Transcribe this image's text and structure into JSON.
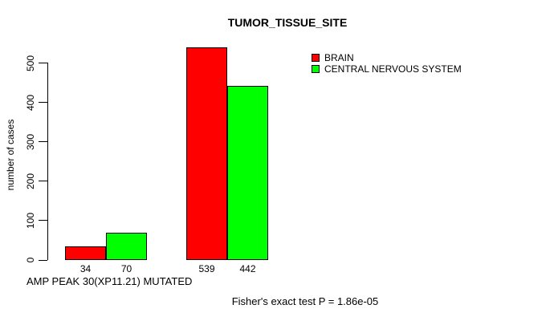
{
  "page": {
    "background_color": "#ffffff",
    "text_color": "#000000"
  },
  "chart_data": {
    "type": "bar",
    "title": "TUMOR_TISSUE_SITE",
    "ylabel": "number of cases",
    "xlabel": "",
    "yticks": [
      0,
      100,
      200,
      300,
      400,
      500
    ],
    "ylim": [
      0,
      560
    ],
    "grid": false,
    "legend_position": "top-right-inside",
    "bar_border_color": "#000000",
    "series": [
      {
        "name": "BRAIN",
        "color": "#ff0000",
        "values": [
          34,
          539
        ]
      },
      {
        "name": "CENTRAL NERVOUS SYSTEM",
        "color": "#00ff00",
        "values": [
          70,
          442
        ]
      }
    ],
    "bar_value_labels": [
      "34",
      "70",
      "539",
      "442"
    ]
  },
  "annotations": {
    "x_axis_note": "AMP PEAK 30(XP11.21) MUTATED",
    "footer_stat": "Fisher's exact test P = 1.86e-05"
  }
}
